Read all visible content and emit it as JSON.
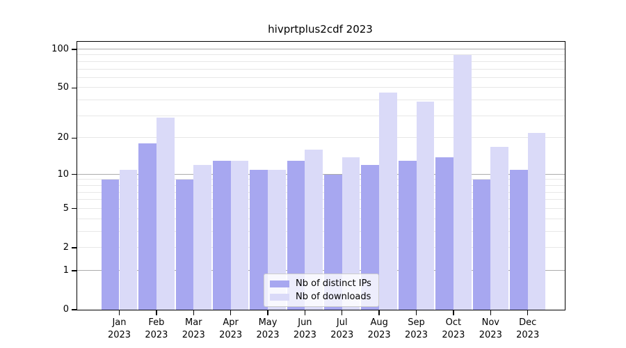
{
  "title": "hivprtplus2cdf 2023",
  "chart_data": {
    "type": "bar",
    "title": "hivprtplus2cdf 2023",
    "categories": [
      "Jan 2023",
      "Feb 2023",
      "Mar 2023",
      "Apr 2023",
      "May 2023",
      "Jun 2023",
      "Jul 2023",
      "Aug 2023",
      "Sep 2023",
      "Oct 2023",
      "Nov 2023",
      "Dec 2023"
    ],
    "x_tick_months": [
      "Jan",
      "Feb",
      "Mar",
      "Apr",
      "May",
      "Jun",
      "Jul",
      "Aug",
      "Sep",
      "Oct",
      "Nov",
      "Dec"
    ],
    "x_tick_year": "2023",
    "series": [
      {
        "name": "Nb of distinct IPs",
        "color": "#a7a7f0",
        "values": [
          9,
          18,
          9,
          13,
          11,
          13,
          10,
          12,
          13,
          14,
          9,
          11
        ]
      },
      {
        "name": "Nb of downloads",
        "color": "#dadaf8",
        "values": [
          11,
          29,
          12,
          13,
          11,
          16,
          14,
          46,
          39,
          90,
          17,
          22
        ]
      }
    ],
    "yscale": "log1p",
    "ylim": [
      0,
      115
    ],
    "y_tick_values": [
      0,
      1,
      2,
      5,
      10,
      20,
      50,
      100
    ],
    "y_major_gridlines": [
      1,
      10,
      100
    ],
    "y_minor_gridlines": [
      2,
      3,
      4,
      5,
      6,
      7,
      8,
      9,
      20,
      30,
      40,
      50,
      60,
      70,
      80,
      90
    ],
    "grid": true,
    "legend_position": "lower center",
    "xlabel": "",
    "ylabel": ""
  },
  "colors": {
    "ips_bar": "#a7a7f0",
    "downloads_bar": "#dadaf8",
    "grid_major": "#ababab",
    "grid_minor": "#e7e7e7",
    "spine": "#000000",
    "legend_border": "#cccccc"
  },
  "legend": {
    "items": [
      "Nb of distinct IPs",
      "Nb of downloads"
    ]
  }
}
